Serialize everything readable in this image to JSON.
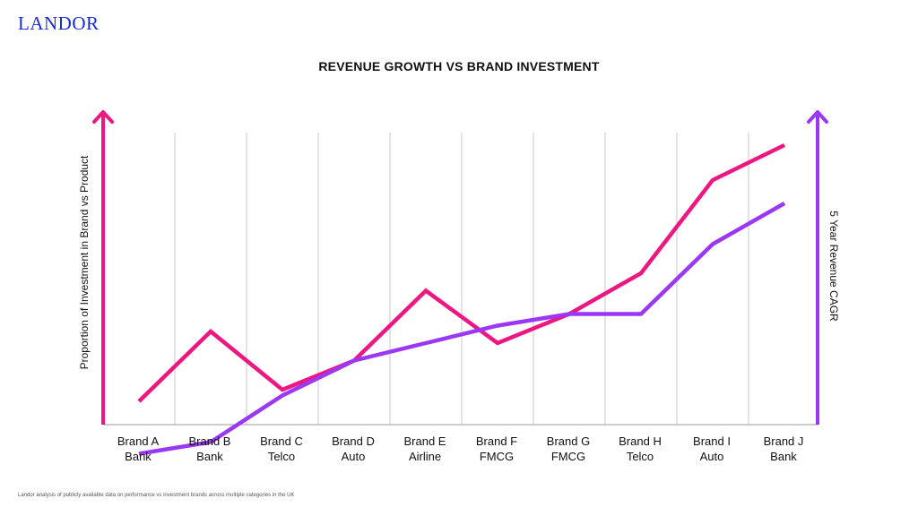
{
  "brand": {
    "logo_text": "LANDOR",
    "logo_color": "#1a2bd6"
  },
  "footnote": "Landor analysis of publicly available data on performance vs investment brands across multiple categories in the UK",
  "chart_data": {
    "type": "line",
    "title": "REVENUE GROWTH VS BRAND INVESTMENT",
    "ylabel_left": "Proportion of Investment in Brand vs Product",
    "ylabel_right": "5 Year Revenue CAGR",
    "categories": [
      [
        "Brand A",
        "Bank"
      ],
      [
        "Brand B",
        "Bank"
      ],
      [
        "Brand C",
        "Telco"
      ],
      [
        "Brand D",
        "Auto"
      ],
      [
        "Brand E",
        "Airline"
      ],
      [
        "Brand F",
        "FMCG"
      ],
      [
        "Brand G",
        "FMCG"
      ],
      [
        "Brand H",
        "Telco"
      ],
      [
        "Brand I",
        "Auto"
      ],
      [
        "Brand J",
        "Bank"
      ]
    ],
    "ylim": [
      0,
      100
    ],
    "axis_ticks_shown": false,
    "grid": "vertical",
    "series": [
      {
        "axis": "left",
        "color": "#ee1781",
        "values": [
          4,
          16,
          6,
          11,
          23,
          14,
          19,
          26,
          42,
          48
        ]
      },
      {
        "axis": "right",
        "color": "#9a38f5",
        "values": [
          -5,
          -3,
          5,
          11,
          14,
          17,
          19,
          19,
          31,
          38
        ]
      }
    ]
  }
}
